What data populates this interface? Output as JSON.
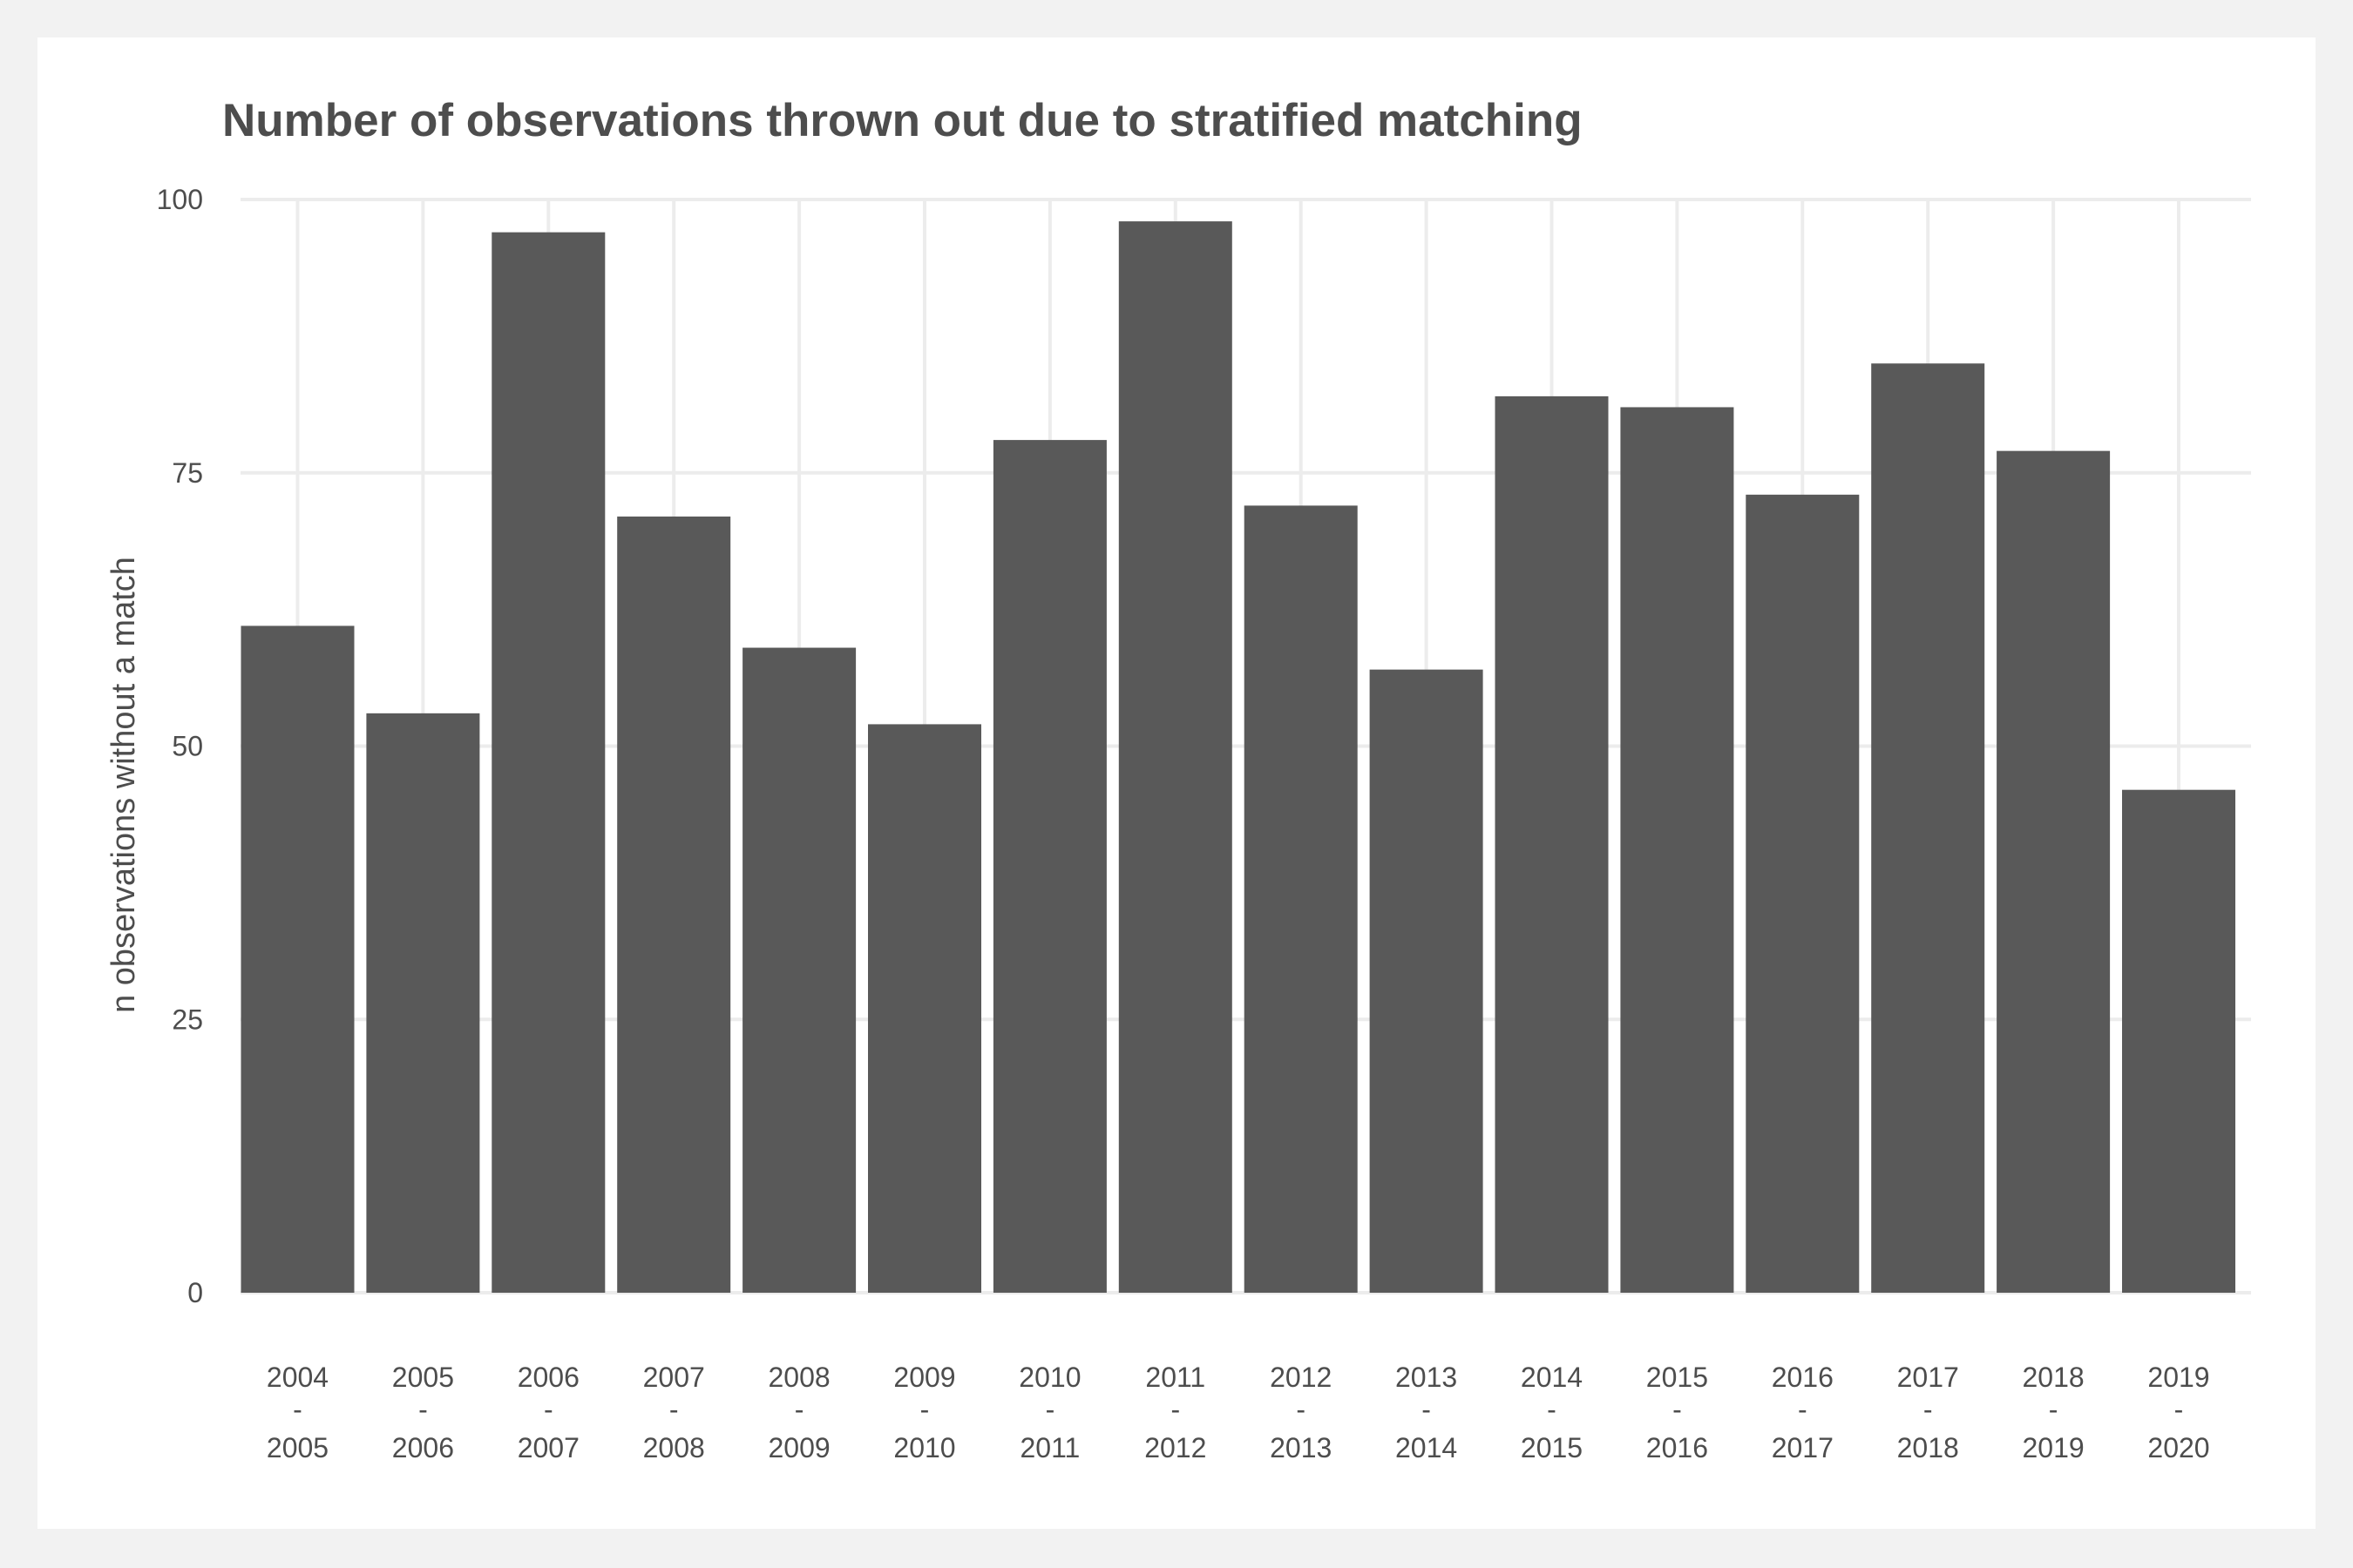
{
  "chart_data": {
    "type": "bar",
    "title": "Number of observations thrown out due to stratified matching",
    "xlabel": "",
    "ylabel": "n observations without a match",
    "ylim": [
      0,
      100
    ],
    "yticks": [
      0,
      25,
      50,
      75,
      100
    ],
    "grid": true,
    "colors": {
      "bar": "#595959",
      "grid": "#ececec",
      "text": "#4d4d4d",
      "background": "#f2f2f2"
    },
    "categories": [
      [
        "2004",
        "-",
        "2005"
      ],
      [
        "2005",
        "-",
        "2006"
      ],
      [
        "2006",
        "-",
        "2007"
      ],
      [
        "2007",
        "-",
        "2008"
      ],
      [
        "2008",
        "-",
        "2009"
      ],
      [
        "2009",
        "-",
        "2010"
      ],
      [
        "2010",
        "-",
        "2011"
      ],
      [
        "2011",
        "-",
        "2012"
      ],
      [
        "2012",
        "-",
        "2013"
      ],
      [
        "2013",
        "-",
        "2014"
      ],
      [
        "2014",
        "-",
        "2015"
      ],
      [
        "2015",
        "-",
        "2016"
      ],
      [
        "2016",
        "-",
        "2017"
      ],
      [
        "2017",
        "-",
        "2018"
      ],
      [
        "2018",
        "-",
        "2019"
      ],
      [
        "2019",
        "-",
        "2020"
      ]
    ],
    "values": [
      61,
      53,
      97,
      71,
      59,
      52,
      78,
      98,
      72,
      57,
      82,
      81,
      73,
      85,
      77,
      46
    ]
  }
}
